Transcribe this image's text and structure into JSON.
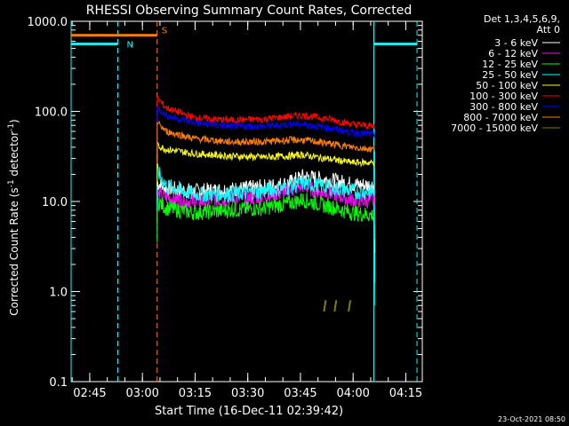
{
  "chart_data": {
    "type": "line",
    "title": "RHESSI Observing Summary Count Rates, Corrected",
    "xlabel": "Start Time (16-Dec-11 02:39:42)",
    "ylabel": "Corrected Count Rate (s",
    "ylabel_sup": "-1",
    "ylabel_mid": " detector",
    "ylabel_sup2": "-1",
    "ylabel_end": ")",
    "yscale": "log",
    "ylim": [
      0.1,
      1000
    ],
    "xlim_minutes": [
      0,
      100
    ],
    "yticks": [
      "0.1",
      "1.0",
      "10.0",
      "100.0",
      "1000.0"
    ],
    "xticks": [
      {
        "label": "02:45",
        "min": 5.3
      },
      {
        "label": "03:00",
        "min": 20.3
      },
      {
        "label": "03:15",
        "min": 35.3
      },
      {
        "label": "03:30",
        "min": 50.3
      },
      {
        "label": "03:45",
        "min": 65.3
      },
      {
        "label": "04:00",
        "min": 80.3
      },
      {
        "label": "04:15",
        "min": 95.3
      }
    ],
    "legend_header": [
      "Det 1,3,4,5,6,9,",
      "Att 0"
    ],
    "legend_placement": "right",
    "series": [
      {
        "name": "3 - 6 keV",
        "color": "#ffffff",
        "x_min": [
          24.5,
          27,
          35,
          45,
          55,
          62,
          66,
          70,
          75,
          80,
          86.5
        ],
        "y": [
          16,
          14,
          13,
          13.5,
          14.5,
          16,
          19,
          18,
          17,
          15.5,
          15
        ]
      },
      {
        "name": "6 - 12 keV",
        "color": "#ff00ff",
        "x_min": [
          24.5,
          27,
          35,
          45,
          55,
          62,
          66,
          70,
          75,
          80,
          86.5
        ],
        "y": [
          12,
          11,
          10,
          10.5,
          11.5,
          13,
          15,
          13,
          12,
          10.5,
          10
        ]
      },
      {
        "name": "12 - 25 keV",
        "color": "#00ff00",
        "x_min": [
          24.5,
          27,
          35,
          45,
          55,
          62,
          66,
          70,
          75,
          80,
          86.5
        ],
        "y": [
          10,
          8.5,
          7.5,
          8,
          8.5,
          9.5,
          10.5,
          9.5,
          8.5,
          7.5,
          7
        ]
      },
      {
        "name": "25 - 50 keV",
        "color": "#00ffff",
        "x_min": [
          24.5,
          27,
          35,
          45,
          55,
          62,
          66,
          70,
          75,
          80,
          86.5
        ],
        "y": [
          22,
          15,
          12,
          12,
          13,
          14.5,
          16,
          15,
          14,
          13,
          12.5
        ]
      },
      {
        "name": "50 - 100 keV",
        "color": "#ffff00",
        "x_min": [
          24.5,
          27,
          35,
          45,
          55,
          62,
          66,
          70,
          75,
          80,
          86.5
        ],
        "y": [
          42,
          38,
          34,
          32,
          31,
          32,
          33,
          31,
          29,
          27,
          27
        ]
      },
      {
        "name": "100 - 300 keV",
        "color": "#ff0000",
        "x_min": [
          24.5,
          27,
          35,
          45,
          55,
          62,
          66,
          70,
          75,
          80,
          86.5
        ],
        "y": [
          140,
          110,
          85,
          80,
          82,
          88,
          90,
          86,
          80,
          72,
          68
        ]
      },
      {
        "name": "300 - 800 keV",
        "color": "#0000ff",
        "x_min": [
          24.5,
          27,
          35,
          45,
          55,
          62,
          66,
          70,
          75,
          80,
          86.5
        ],
        "y": [
          110,
          90,
          75,
          68,
          68,
          72,
          72,
          68,
          64,
          58,
          55
        ]
      },
      {
        "name": "800 - 7000 keV",
        "color": "#ff8000",
        "x_min": [
          24.5,
          27,
          35,
          45,
          55,
          62,
          66,
          70,
          75,
          80,
          86.5
        ],
        "y": [
          75,
          60,
          50,
          46,
          46,
          48,
          48,
          46,
          43,
          40,
          38
        ]
      },
      {
        "name": "7000 - 15000 keV",
        "color": "#808000",
        "x_min": [
          72,
          72.5,
          75,
          75.5,
          79,
          79.5
        ],
        "y": [
          0.6,
          0.8,
          0.6,
          0.8,
          0.6,
          0.8
        ]
      }
    ],
    "annotations": {
      "N": {
        "label": "N",
        "start_min": 0,
        "end_min": 13.3,
        "color": "#00ffff"
      },
      "S": {
        "label": "S",
        "start_min": 0,
        "end_min": 24.5,
        "color": "#ff8000"
      },
      "N2": {
        "start_min": 86.2,
        "end_min": 98.5,
        "color": "#00ffff"
      },
      "cyan_vlines_min": [
        0,
        13.3,
        86.2,
        98.5
      ],
      "orange_vlines_min": [
        24.5
      ]
    },
    "timestamp": "23-Oct-2021 08:50"
  }
}
